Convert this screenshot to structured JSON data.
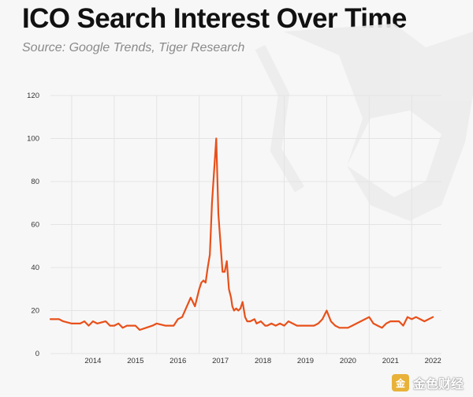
{
  "chart_data": {
    "type": "line",
    "title": "ICO Search Interest Over Time",
    "subtitle": "Source: Google Trends, Tiger Research",
    "xlabel": "",
    "ylabel": "",
    "ylim": [
      0,
      120
    ],
    "yticks": [
      0,
      20,
      40,
      60,
      80,
      100,
      120
    ],
    "xlim": [
      2013.5,
      2022.7
    ],
    "xticks": [
      "2014",
      "2015",
      "2016",
      "2017",
      "2018",
      "2019",
      "2020",
      "2021",
      "2022"
    ],
    "grid": true,
    "legend": "none",
    "line_color": "#e8501a",
    "series": [
      {
        "x": [
          2013.5,
          2013.7,
          2013.8,
          2014.0,
          2014.2,
          2014.3,
          2014.4,
          2014.5,
          2014.6,
          2014.8,
          2014.9,
          2015.0,
          2015.1,
          2015.2,
          2015.3,
          2015.4,
          2015.5,
          2015.6,
          2015.75,
          2015.9,
          2016.0,
          2016.2,
          2016.3,
          2016.4,
          2016.5,
          2016.6,
          2016.8,
          2016.9,
          2017.0,
          2017.05,
          2017.1,
          2017.15,
          2017.2,
          2017.25,
          2017.3,
          2017.4,
          2017.45,
          2017.55,
          2017.6,
          2017.65,
          2017.7,
          2017.75,
          2017.78,
          2017.82,
          2017.87,
          2017.92,
          2017.97,
          2018.02,
          2018.08,
          2018.13,
          2018.2,
          2018.3,
          2018.35,
          2018.45,
          2018.55,
          2018.6,
          2018.7,
          2018.8,
          2018.9,
          2019.0,
          2019.1,
          2019.2,
          2019.3,
          2019.5,
          2019.7,
          2019.8,
          2019.9,
          2020.0,
          2020.1,
          2020.15,
          2020.2,
          2020.3,
          2020.4,
          2020.5,
          2020.6,
          2020.7,
          2020.8,
          2020.9,
          2021.0,
          2021.1,
          2021.2,
          2021.3,
          2021.4,
          2021.5,
          2021.6,
          2021.7,
          2021.8,
          2021.9,
          2022.0,
          2022.1,
          2022.2,
          2022.3,
          2022.4,
          2022.5
        ],
        "y": [
          16,
          16,
          15,
          14,
          14,
          15,
          13,
          15,
          14,
          15,
          13,
          13,
          14,
          12,
          13,
          13,
          13,
          11,
          12,
          13,
          14,
          13,
          13,
          13,
          16,
          17,
          26,
          22,
          30,
          33,
          34,
          33,
          40,
          46,
          70,
          100,
          65,
          38,
          38,
          43,
          30,
          26,
          22,
          20,
          21,
          20,
          21,
          24,
          17,
          15,
          15,
          16,
          14,
          15,
          13,
          13,
          14,
          13,
          14,
          13,
          15,
          14,
          13,
          13,
          13,
          14,
          16,
          20,
          15,
          14,
          13,
          12,
          12,
          12,
          13,
          14,
          15,
          16,
          17,
          14,
          13,
          12,
          14,
          15,
          15,
          15,
          13,
          17,
          16,
          17,
          16,
          15,
          16,
          17
        ]
      }
    ]
  },
  "watermark": {
    "logo": "金",
    "text": "金色财经"
  }
}
